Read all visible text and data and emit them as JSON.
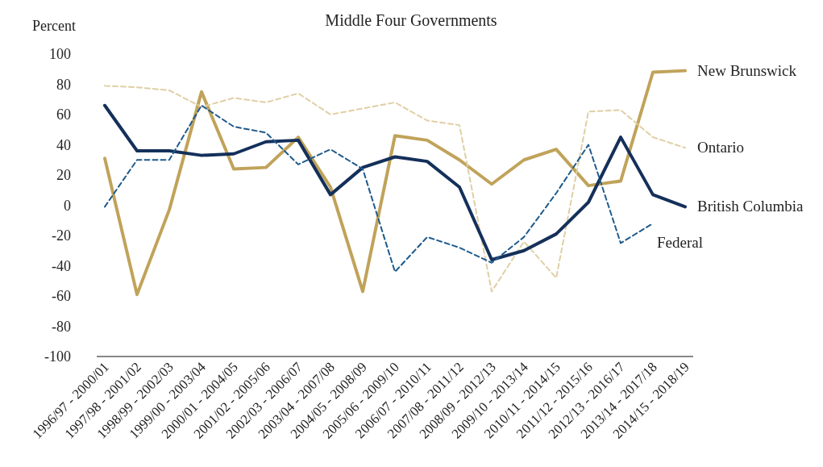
{
  "chart_data": {
    "type": "line",
    "title": "Middle Four Governments",
    "ylabel": "Percent",
    "categories": [
      "1996/97 - 2000/01",
      "1997/98 - 2001/02",
      "1998/99 - 2002/03",
      "1999/00 - 2003/04",
      "2000/01 - 2004/05",
      "2001/02 - 2005/06",
      "2002/03 - 2006/07",
      "2003/04 - 2007/08",
      "2004/05 - 2008/09",
      "2005/06 - 2009/10",
      "2006/07 - 2010/11",
      "2007/08 - 2011/12",
      "2008/09 - 2012/13",
      "2009/10 - 2013/14",
      "2010/11 - 2014/15",
      "2011/12 - 2015/16",
      "2012/13 - 2016/17",
      "2013/14 - 2017/18",
      "2014/15 - 2018/19"
    ],
    "series": [
      {
        "name": "New Brunswick",
        "color": "#c0a35a",
        "line_style": "solid",
        "values": [
          31,
          -59,
          -3,
          75,
          24,
          25,
          45,
          12,
          -57,
          46,
          43,
          30,
          14,
          30,
          37,
          13,
          16,
          88,
          89
        ]
      },
      {
        "name": "Ontario",
        "color": "#e0cfa5",
        "line_style": "dashed",
        "values": [
          79,
          78,
          76,
          65,
          71,
          68,
          74,
          60,
          64,
          68,
          56,
          53,
          -57,
          -24,
          -48,
          62,
          63,
          45,
          38
        ]
      },
      {
        "name": "British Columbia",
        "color": "#14305a",
        "line_style": "solid",
        "values": [
          66,
          36,
          36,
          33,
          34,
          42,
          43,
          7,
          25,
          32,
          29,
          12,
          -36,
          -30,
          -19,
          2,
          45,
          7,
          -1
        ]
      },
      {
        "name": "Federal",
        "color": "#1e5a8c",
        "line_style": "dashed",
        "values": [
          -1,
          30,
          30,
          66,
          52,
          48,
          27,
          37,
          24,
          -44,
          -21,
          -28,
          -38,
          -21,
          8,
          40,
          -25,
          -12,
          null
        ]
      }
    ],
    "ylim": [
      -100,
      100
    ],
    "yticks": [
      -100,
      -80,
      -60,
      -40,
      -20,
      0,
      20,
      40,
      60,
      80,
      100
    ],
    "grid": false,
    "marker": "none"
  }
}
